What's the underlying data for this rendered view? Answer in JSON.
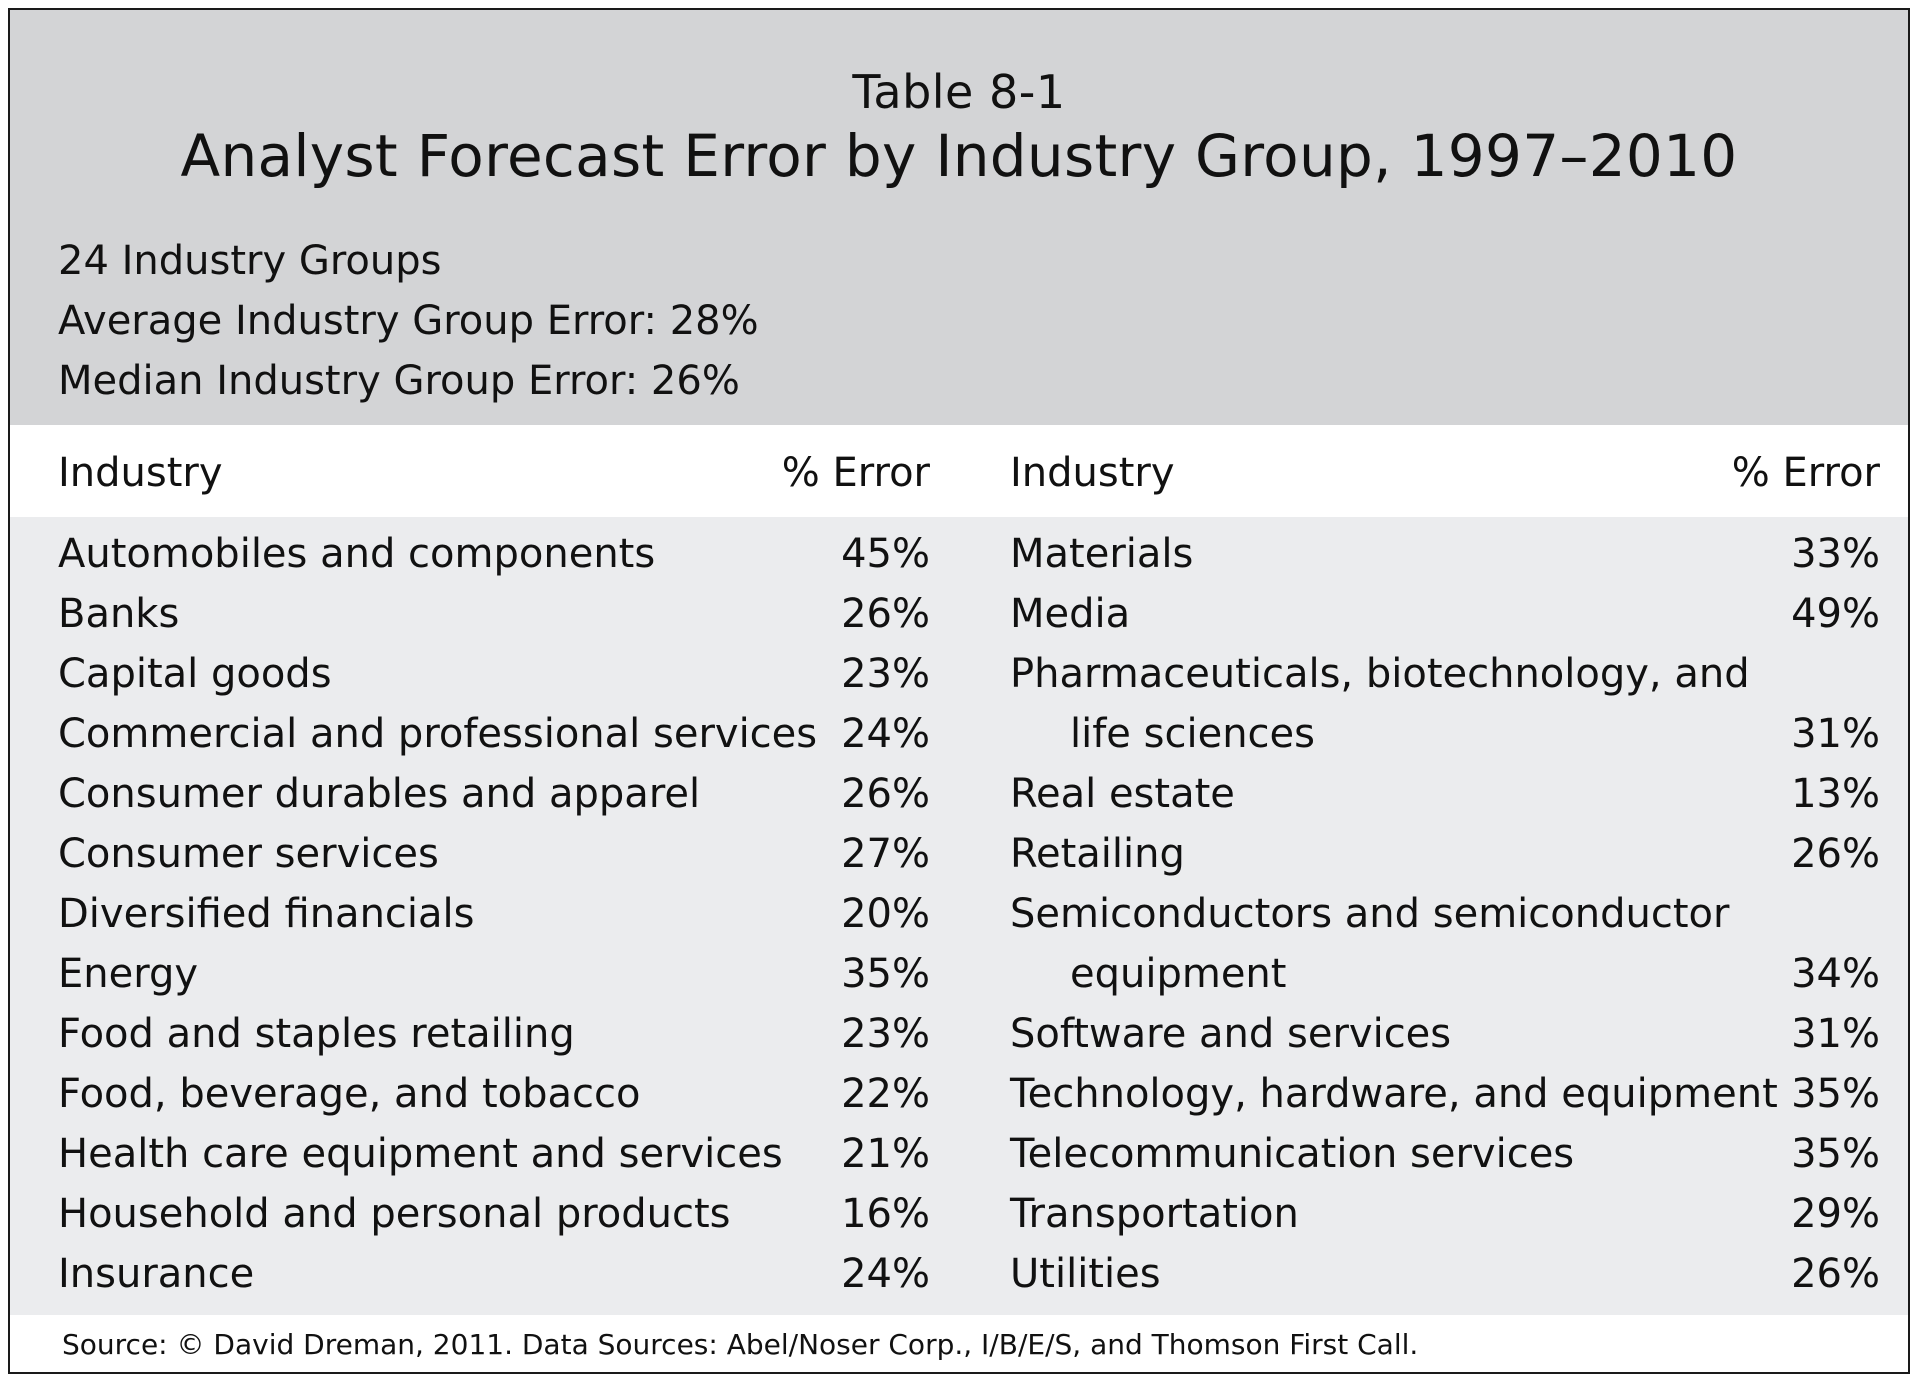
{
  "table": {
    "number": "Table 8-1",
    "title": "Analyst Forecast Error by Industry Group, 1997–2010",
    "summary": [
      "24 Industry Groups",
      "Average Industry Group Error: 28%",
      "Median Industry Group Error: 26%"
    ],
    "headers": {
      "industry": "Industry",
      "error": "% Error"
    },
    "left_rows": [
      {
        "industry": "Automobiles and components",
        "error": "45%"
      },
      {
        "industry": "Banks",
        "error": "26%"
      },
      {
        "industry": "Capital goods",
        "error": "23%"
      },
      {
        "industry": "Commercial and professional services",
        "error": "24%"
      },
      {
        "industry": "Consumer durables and apparel",
        "error": "26%"
      },
      {
        "industry": "Consumer services",
        "error": "27%"
      },
      {
        "industry": "Diversified financials",
        "error": "20%"
      },
      {
        "industry": "Energy",
        "error": "35%"
      },
      {
        "industry": "Food and staples retailing",
        "error": "23%"
      },
      {
        "industry": "Food, beverage, and tobacco",
        "error": "22%"
      },
      {
        "industry": "Health care equipment and services",
        "error": "21%"
      },
      {
        "industry": "Household and personal products",
        "error": "16%"
      },
      {
        "industry": "Insurance",
        "error": "24%"
      }
    ],
    "right_rows": [
      {
        "industry": "Materials",
        "error": "33%"
      },
      {
        "industry": "Media",
        "error": "49%"
      },
      {
        "industry": "Pharmaceuticals, biotechnology, and",
        "error": ""
      },
      {
        "industry": "life sciences",
        "error": "31%",
        "indent": true
      },
      {
        "industry": "Real estate",
        "error": "13%"
      },
      {
        "industry": "Retailing",
        "error": "26%"
      },
      {
        "industry": "Semiconductors and semiconductor",
        "error": ""
      },
      {
        "industry": "equipment",
        "error": "34%",
        "indent": true
      },
      {
        "industry": "Software and services",
        "error": "31%"
      },
      {
        "industry": "Technology, hardware, and equipment",
        "error": "35%"
      },
      {
        "industry": "Telecommunication services",
        "error": "35%"
      },
      {
        "industry": "Transportation",
        "error": "29%"
      },
      {
        "industry": "Utilities",
        "error": "26%"
      }
    ],
    "source": "Source: © David Dreman, 2011. Data Sources: Abel/Noser Corp., I/B/E/S, and Thomson First Call."
  }
}
